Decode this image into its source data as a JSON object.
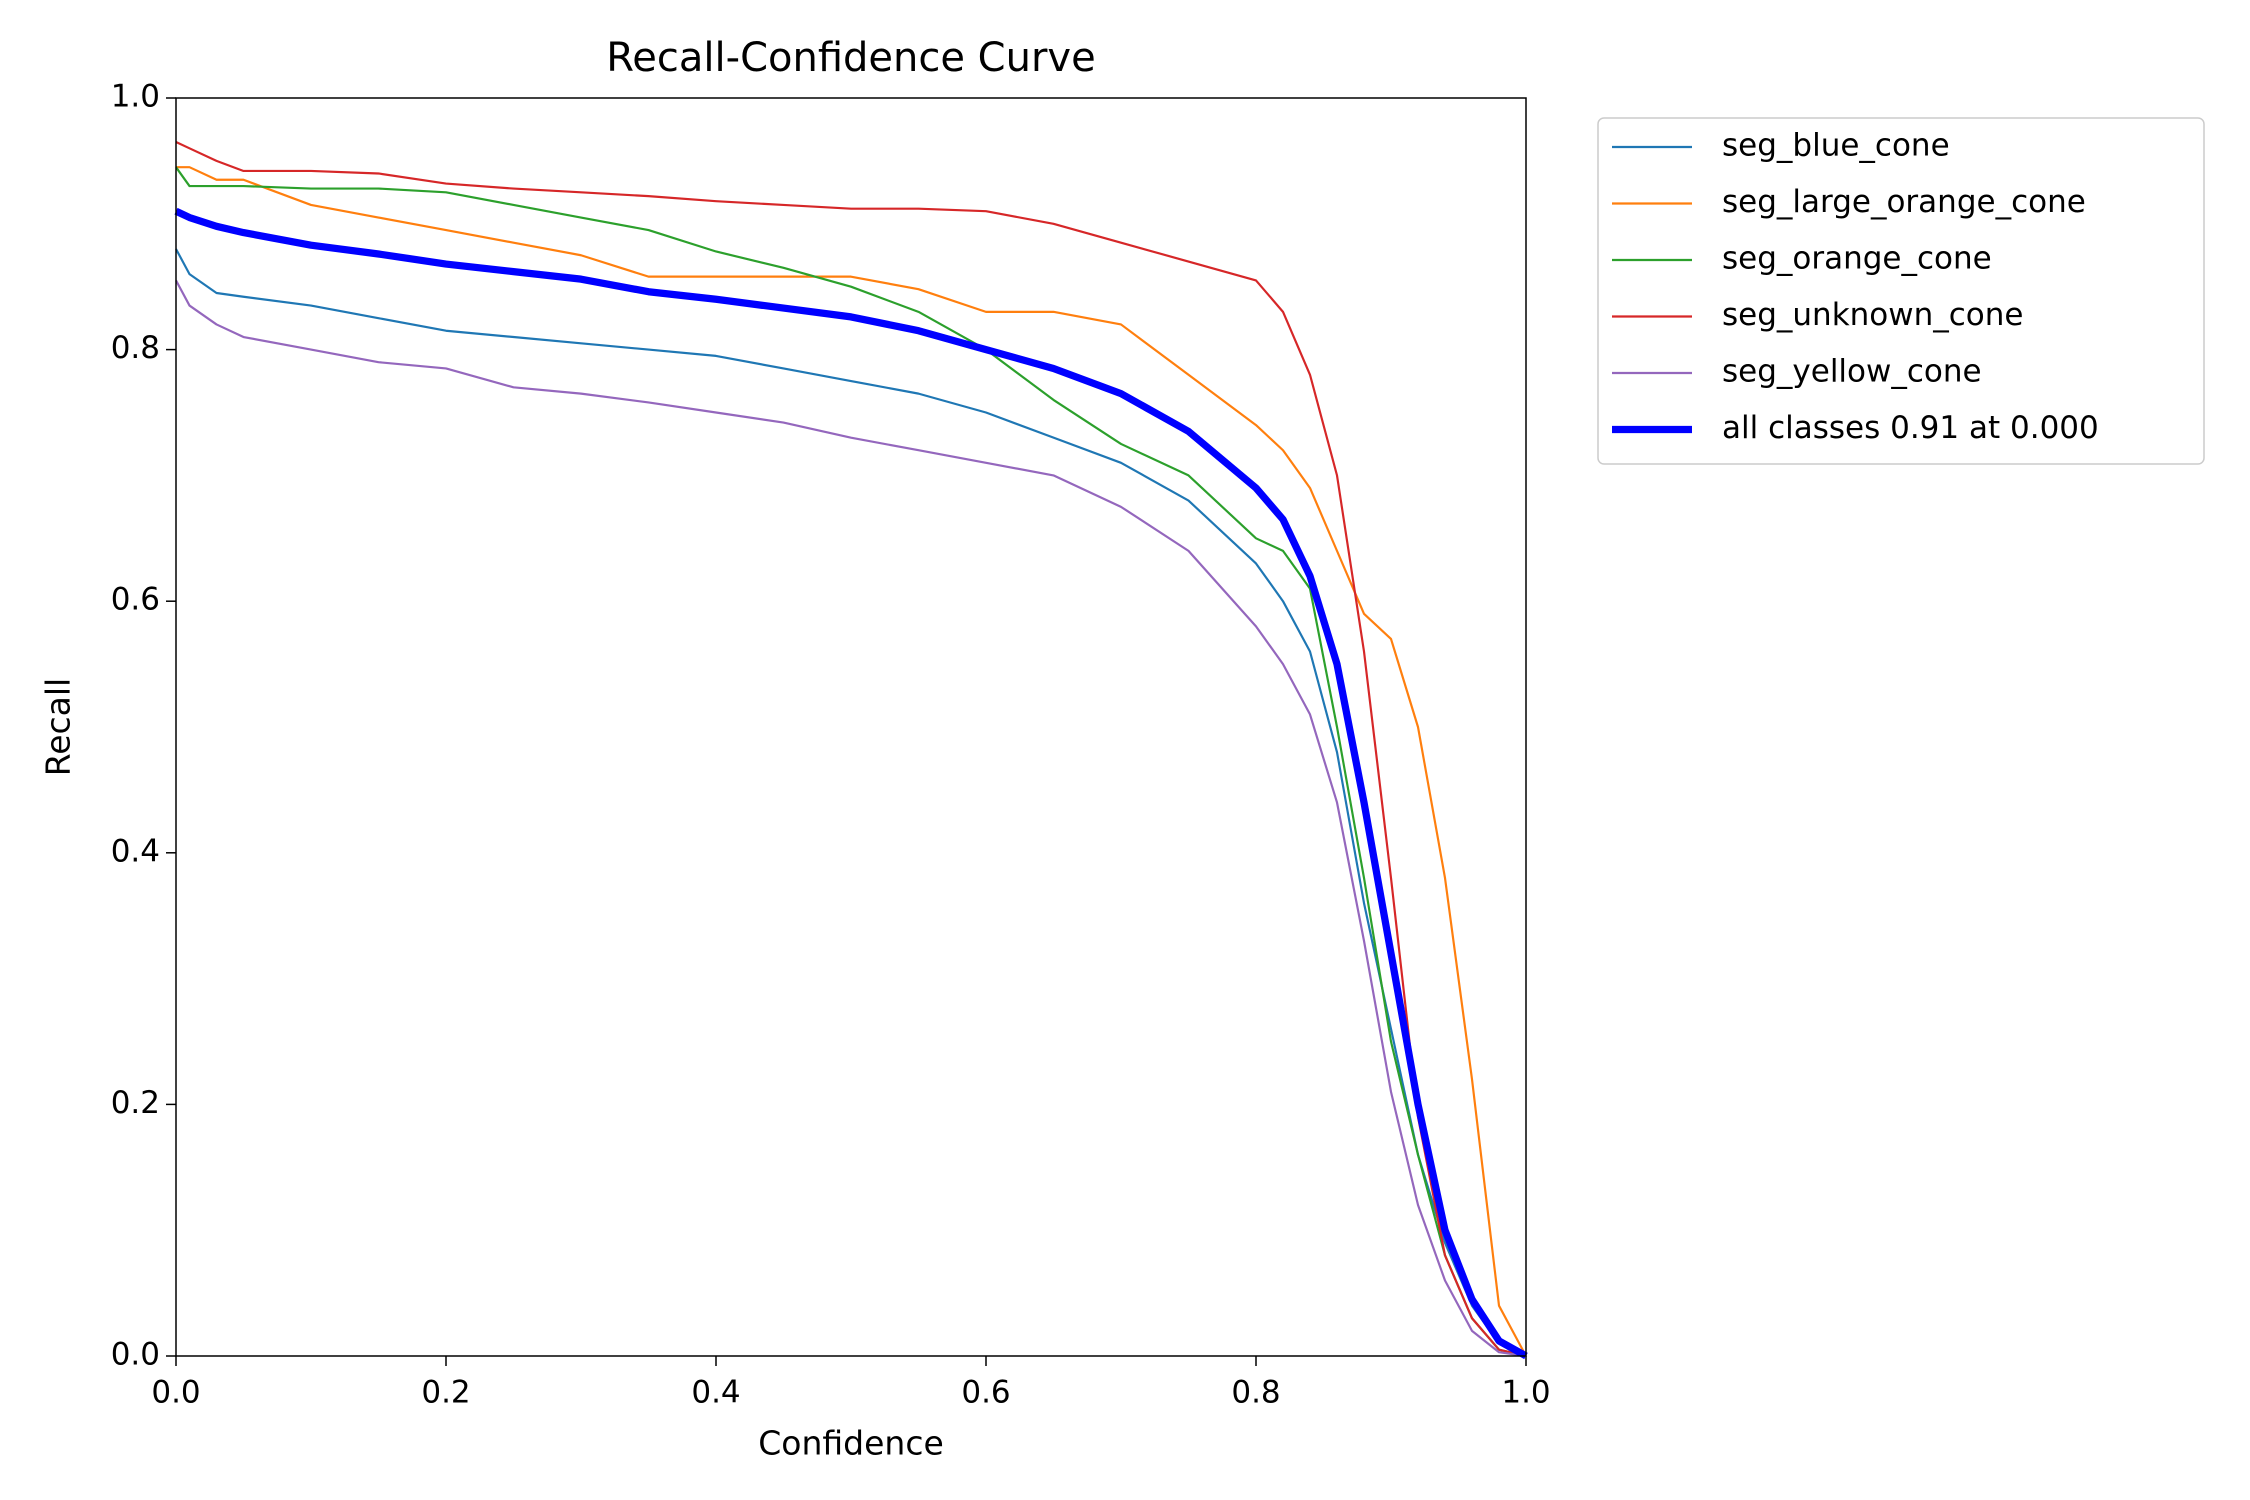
{
  "chart_data": {
    "type": "line",
    "title": "Recall-Confidence Curve",
    "x_label": "Confidence",
    "y_label": "Recall",
    "x": [
      0,
      0.01,
      0.03,
      0.05,
      0.1,
      0.15,
      0.2,
      0.25,
      0.3,
      0.35,
      0.4,
      0.45,
      0.5,
      0.55,
      0.6,
      0.65,
      0.7,
      0.75,
      0.8,
      0.82,
      0.84,
      0.86,
      0.88,
      0.9,
      0.92,
      0.94,
      0.96,
      0.98,
      1.0
    ],
    "series": [
      {
        "name": "seg_blue_cone",
        "color": "#1f77b4",
        "linewidth": 1.5,
        "values": [
          0.88,
          0.86,
          0.845,
          0.842,
          0.835,
          0.825,
          0.815,
          0.81,
          0.805,
          0.8,
          0.795,
          0.785,
          0.775,
          0.765,
          0.75,
          0.73,
          0.71,
          0.68,
          0.63,
          0.6,
          0.56,
          0.48,
          0.36,
          0.26,
          0.16,
          0.09,
          0.04,
          0.01,
          0
        ]
      },
      {
        "name": "seg_large_orange_cone",
        "color": "#ff7f0e",
        "linewidth": 1.5,
        "values": [
          0.945,
          0.945,
          0.935,
          0.935,
          0.915,
          0.905,
          0.895,
          0.885,
          0.875,
          0.858,
          0.858,
          0.858,
          0.858,
          0.848,
          0.83,
          0.83,
          0.82,
          0.78,
          0.74,
          0.72,
          0.69,
          0.64,
          0.59,
          0.57,
          0.5,
          0.38,
          0.22,
          0.04,
          0
        ]
      },
      {
        "name": "seg_orange_cone",
        "color": "#2ca02c",
        "linewidth": 1.5,
        "values": [
          0.945,
          0.93,
          0.93,
          0.93,
          0.928,
          0.928,
          0.925,
          0.915,
          0.905,
          0.895,
          0.878,
          0.865,
          0.85,
          0.83,
          0.8,
          0.76,
          0.725,
          0.7,
          0.65,
          0.64,
          0.61,
          0.5,
          0.38,
          0.25,
          0.16,
          0.08,
          0.03,
          0.005,
          0
        ]
      },
      {
        "name": "seg_unknown_cone",
        "color": "#d62728",
        "linewidth": 1.5,
        "values": [
          0.965,
          0.96,
          0.95,
          0.942,
          0.942,
          0.94,
          0.932,
          0.928,
          0.925,
          0.922,
          0.918,
          0.915,
          0.912,
          0.912,
          0.91,
          0.9,
          0.885,
          0.87,
          0.855,
          0.83,
          0.78,
          0.7,
          0.56,
          0.38,
          0.19,
          0.08,
          0.03,
          0.005,
          0
        ]
      },
      {
        "name": "seg_yellow_cone",
        "color": "#9467bd",
        "linewidth": 1.5,
        "values": [
          0.855,
          0.835,
          0.82,
          0.81,
          0.8,
          0.79,
          0.785,
          0.77,
          0.765,
          0.758,
          0.75,
          0.742,
          0.73,
          0.72,
          0.71,
          0.7,
          0.675,
          0.64,
          0.58,
          0.55,
          0.51,
          0.44,
          0.33,
          0.21,
          0.12,
          0.06,
          0.02,
          0.003,
          0
        ]
      },
      {
        "name": "all classes 0.91 at 0.000",
        "color": "#0000ff",
        "linewidth": 5,
        "values": [
          0.91,
          0.905,
          0.898,
          0.893,
          0.883,
          0.876,
          0.868,
          0.862,
          0.856,
          0.846,
          0.84,
          0.833,
          0.826,
          0.815,
          0.8,
          0.785,
          0.765,
          0.735,
          0.69,
          0.665,
          0.62,
          0.55,
          0.44,
          0.32,
          0.2,
          0.1,
          0.045,
          0.012,
          0
        ]
      }
    ],
    "xlim": [
      0,
      1
    ],
    "ylim": [
      0,
      1
    ],
    "xticks": [
      {
        "value": 0,
        "label": "0.0"
      },
      0.2,
      0.4,
      0.6,
      0.8,
      {
        "value": 1,
        "label": "1.0"
      }
    ],
    "yticks": [
      {
        "value": 0,
        "label": "0.0"
      },
      0.2,
      0.4,
      0.6,
      0.8,
      {
        "value": 1,
        "label": "1.0"
      }
    ],
    "legend": "outside-upper-right"
  }
}
